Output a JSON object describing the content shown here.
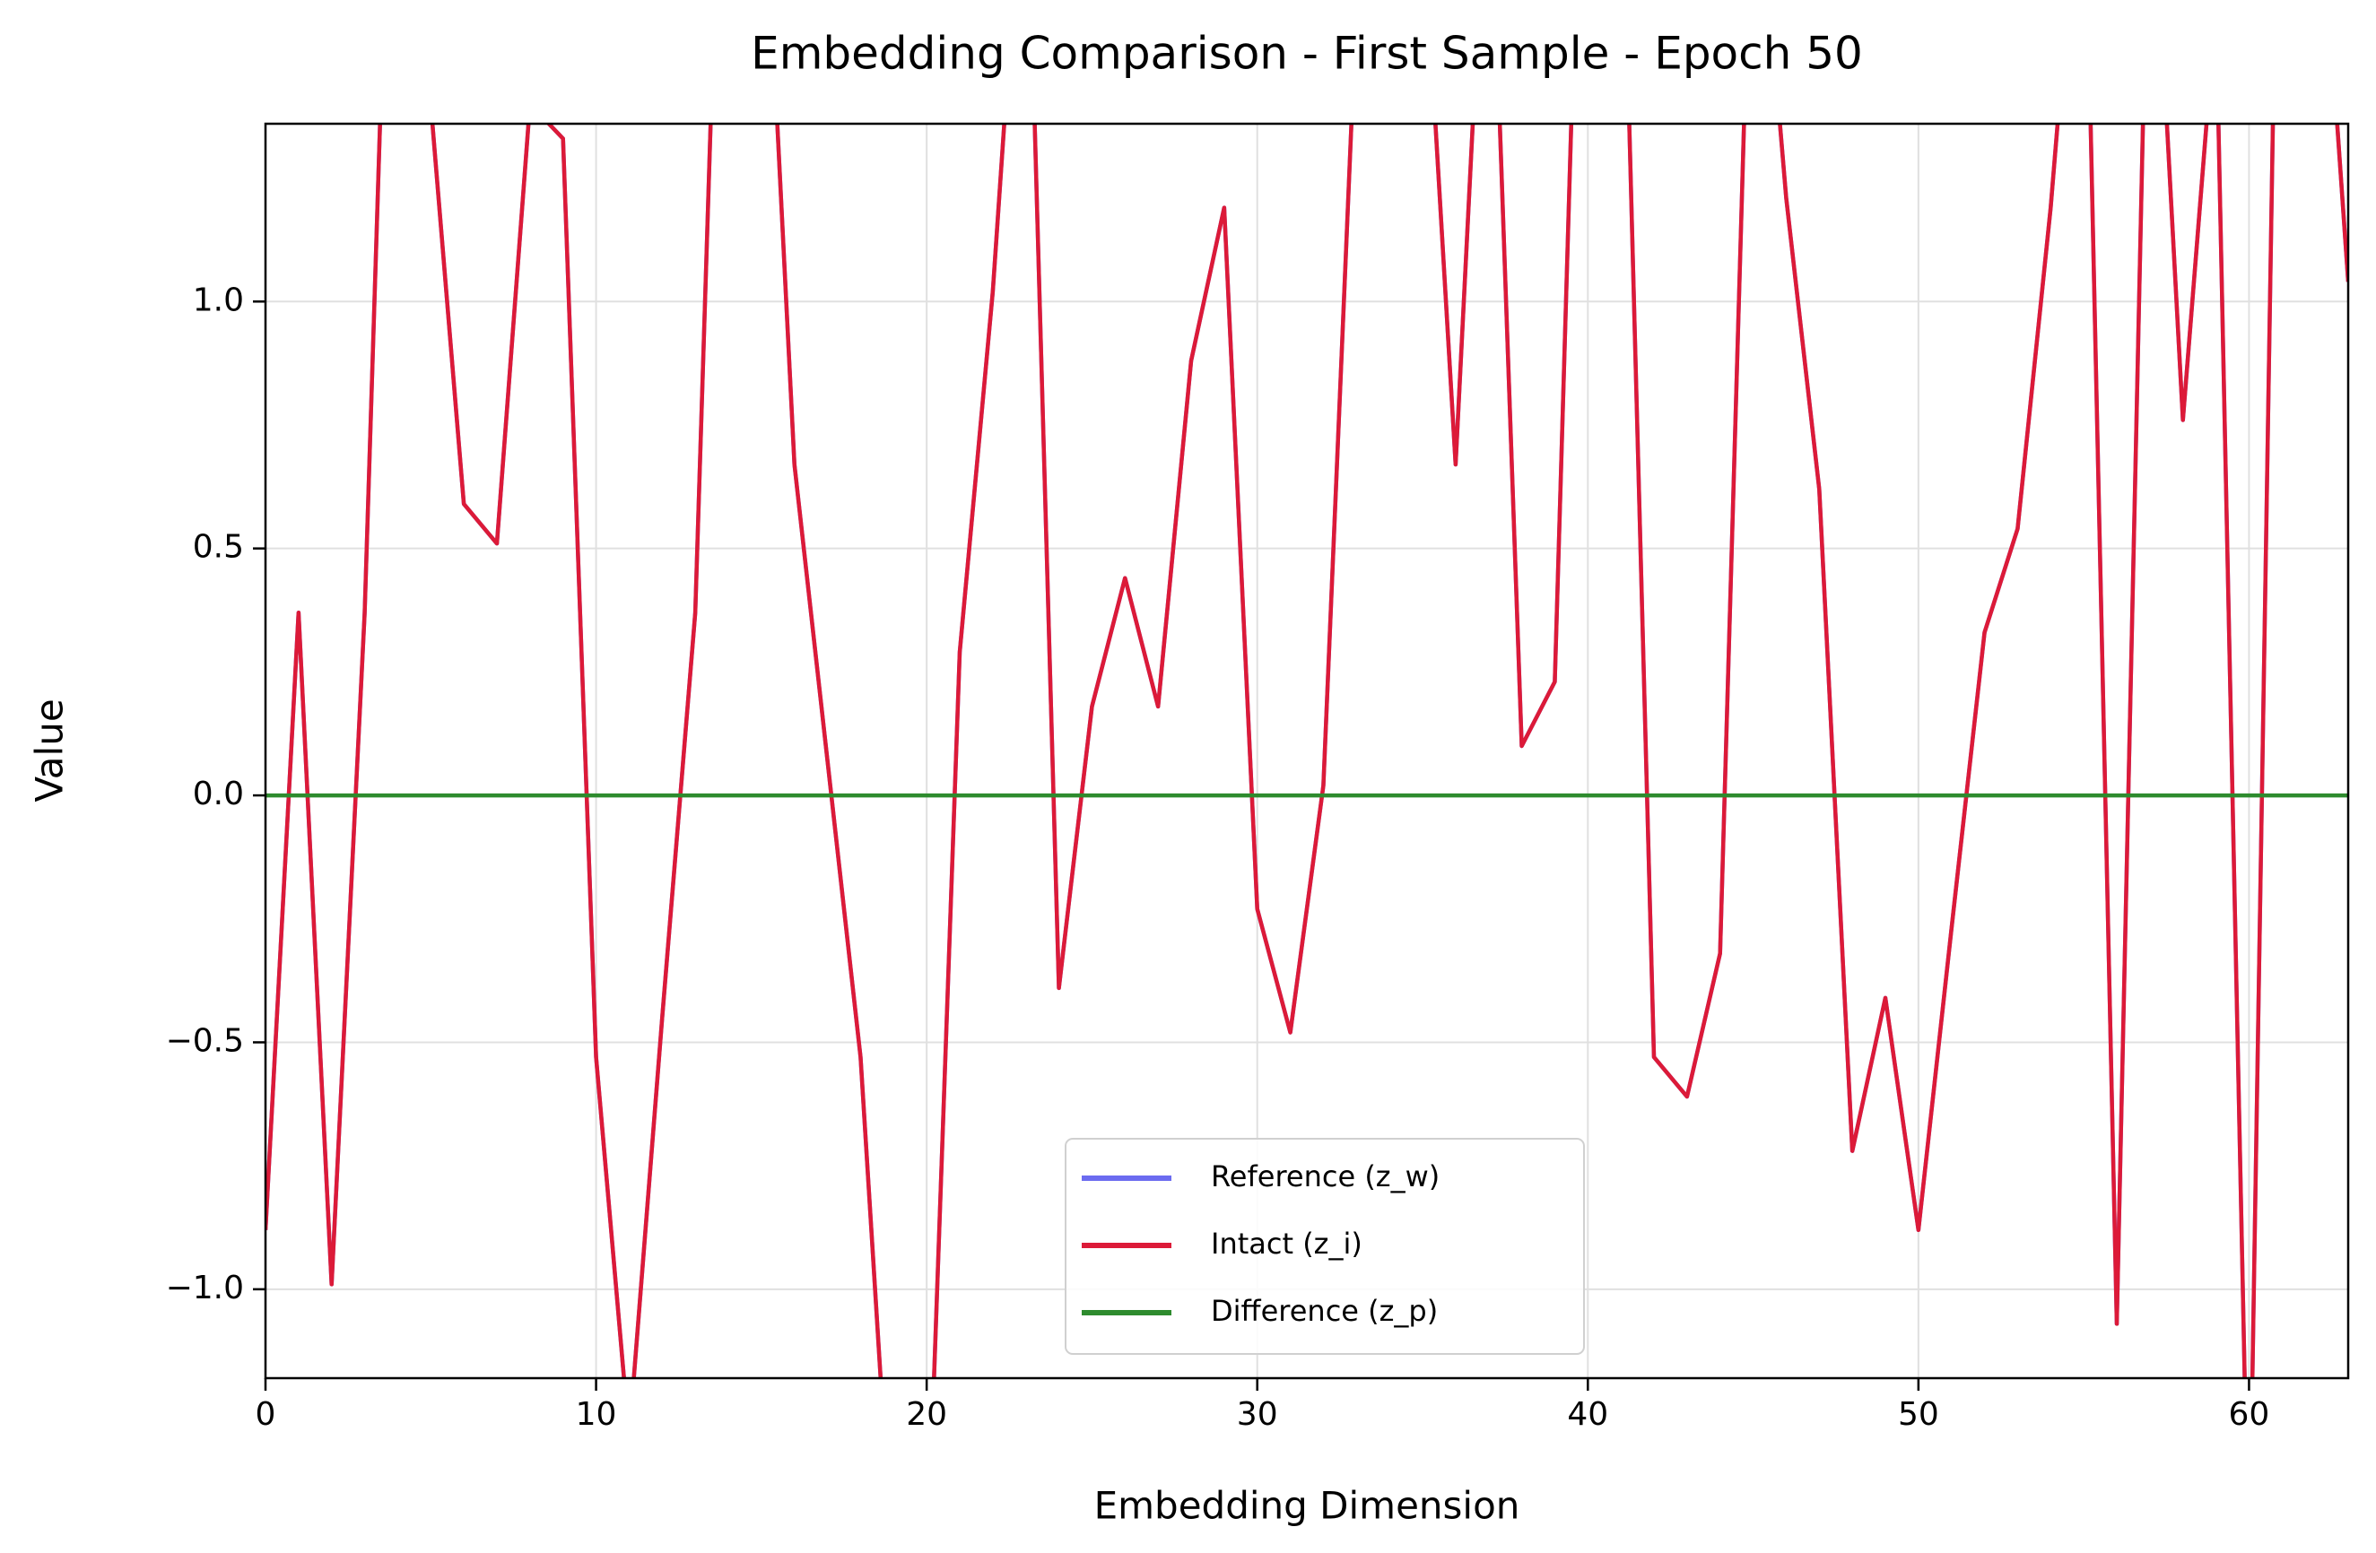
{
  "chart_data": {
    "type": "line",
    "title": "Embedding Comparison - First Sample - Epoch 50",
    "x_label": "Embedding Dimension",
    "y_label": "Value",
    "x": [
      0,
      1,
      2,
      3,
      4,
      5,
      6,
      7,
      8,
      9,
      10,
      11,
      12,
      13,
      14,
      15,
      16,
      17,
      18,
      19,
      20,
      21,
      22,
      23,
      24,
      25,
      26,
      27,
      28,
      29,
      30,
      31,
      32,
      33,
      34,
      35,
      36,
      37,
      38,
      39,
      40,
      41,
      42,
      43,
      44,
      45,
      46,
      47,
      48,
      49,
      50,
      51,
      52,
      53,
      54,
      55,
      56,
      57,
      58,
      59,
      60,
      61,
      62,
      63
    ],
    "series": [
      {
        "name": "Reference (z_w)",
        "color": "#6b6bf0",
        "values": [
          -0.88,
          0.37,
          -0.99,
          0.37,
          2.5,
          1.4,
          0.59,
          0.51,
          1.4,
          1.33,
          -0.53,
          -1.3,
          -0.45,
          0.37,
          2.5,
          2.0,
          0.67,
          0.07,
          -0.53,
          -1.6,
          -1.6,
          0.29,
          1.02,
          2.0,
          -0.39,
          0.18,
          0.44,
          0.18,
          0.88,
          1.19,
          -0.23,
          -0.48,
          0.02,
          1.6,
          1.8,
          1.8,
          0.67,
          2.0,
          0.1,
          0.23,
          2.5,
          2.0,
          -0.53,
          -0.61,
          -0.32,
          2.0,
          1.21,
          0.62,
          -0.72,
          -0.41,
          -0.88,
          -0.27,
          0.33,
          0.54,
          1.19,
          2.0,
          -1.07,
          2.0,
          0.76,
          1.6,
          -1.6,
          2.5,
          2.0,
          1.04
        ]
      },
      {
        "name": "Intact (z_i)",
        "color": "#dc1a38",
        "values": [
          -0.88,
          0.37,
          -0.99,
          0.37,
          2.5,
          1.4,
          0.59,
          0.51,
          1.4,
          1.33,
          -0.53,
          -1.3,
          -0.45,
          0.37,
          2.5,
          2.0,
          0.67,
          0.07,
          -0.53,
          -1.6,
          -1.6,
          0.29,
          1.02,
          2.0,
          -0.39,
          0.18,
          0.44,
          0.18,
          0.88,
          1.19,
          -0.23,
          -0.48,
          0.02,
          1.6,
          1.8,
          1.8,
          0.67,
          2.0,
          0.1,
          0.23,
          2.5,
          2.0,
          -0.53,
          -0.61,
          -0.32,
          2.0,
          1.21,
          0.62,
          -0.72,
          -0.41,
          -0.88,
          -0.27,
          0.33,
          0.54,
          1.19,
          2.0,
          -1.07,
          2.0,
          0.76,
          1.6,
          -1.6,
          2.5,
          2.0,
          1.04
        ]
      },
      {
        "name": "Difference (z_p)",
        "color": "#2e8b2e",
        "values": [
          0,
          0,
          0,
          0,
          0,
          0,
          0,
          0,
          0,
          0,
          0,
          0,
          0,
          0,
          0,
          0,
          0,
          0,
          0,
          0,
          0,
          0,
          0,
          0,
          0,
          0,
          0,
          0,
          0,
          0,
          0,
          0,
          0,
          0,
          0,
          0,
          0,
          0,
          0,
          0,
          0,
          0,
          0,
          0,
          0,
          0,
          0,
          0,
          0,
          0,
          0,
          0,
          0,
          0,
          0,
          0,
          0,
          0,
          0,
          0,
          0,
          0,
          0,
          0
        ]
      }
    ],
    "xlim": [
      0,
      63
    ],
    "ylim": [
      -1.18,
      1.36
    ],
    "xticks": [
      0,
      10,
      20,
      30,
      40,
      50,
      60
    ],
    "yticks": [
      {
        "value": -1.0,
        "label": "−1.0"
      },
      {
        "value": -0.5,
        "label": "−0.5"
      },
      {
        "value": 0,
        "label": "0.0"
      },
      {
        "value": 0.5,
        "label": "0.5"
      },
      {
        "value": 1.0,
        "label": "1.0"
      }
    ],
    "grid": true,
    "legend": "lower center"
  }
}
